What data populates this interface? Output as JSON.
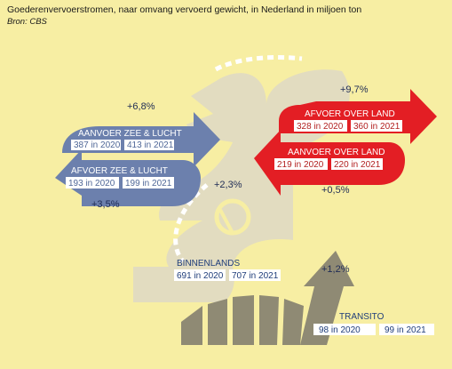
{
  "header": {
    "title": "Goederenvervoerstromen, naar omvang vervoerd gewicht, in Nederland in miljoen ton",
    "source": "Bron: CBS"
  },
  "colors": {
    "background": "#f7eea3",
    "blue_arrow": "#6c80ad",
    "red_arrow": "#e31e24",
    "grey_arrow": "#8f8a74",
    "silhouette": "#e2dcc0"
  },
  "flows": {
    "aanvoer_zee_lucht": {
      "label": "AANVOER ZEE & LUCHT",
      "v2020": "387 in 2020",
      "v2021": "413 in 2021",
      "change": "+6,8%"
    },
    "afvoer_zee_lucht": {
      "label": "AFVOER ZEE & LUCHT",
      "v2020": "193 in 2020",
      "v2021": "199 in 2021",
      "change": "+3,5%"
    },
    "afvoer_over_land": {
      "label": "AFVOER OVER LAND",
      "v2020": "328 in 2020",
      "v2021": "360 in 2021",
      "change": "+9,7%"
    },
    "aanvoer_over_land": {
      "label": "AANVOER OVER LAND",
      "v2020": "219 in 2020",
      "v2021": "220 in 2021",
      "change": "+0,5%"
    },
    "binnenlands": {
      "label": "BINNENLANDS",
      "v2020": "691 in 2020",
      "v2021": "707 in 2021",
      "change": "+2,3%"
    },
    "transito": {
      "label": "TRANSITO",
      "v2020": "98 in 2020",
      "v2021": "99 in 2021",
      "change": "+1,2%"
    }
  }
}
